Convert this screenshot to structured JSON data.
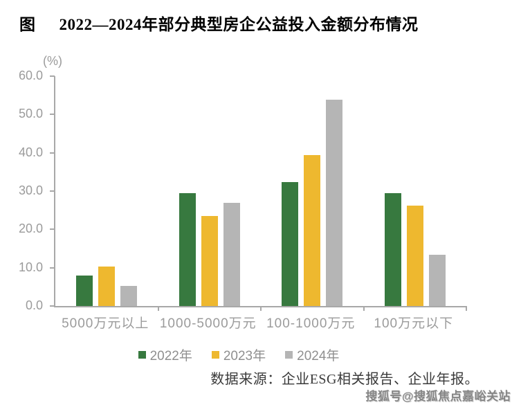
{
  "figure": {
    "label": "图",
    "title": "2022—2024年部分典型房企公益投入金额分布情况"
  },
  "chart_data": {
    "type": "bar",
    "title": "2022—2024年部分典型房企公益投入金额分布情况",
    "unit_label": "(%)",
    "xlabel": "",
    "ylabel": "(%)",
    "categories": [
      "5000万元以上",
      "1000-5000万元",
      "100-1000万元",
      "100万元以下"
    ],
    "series": [
      {
        "name": "2022年",
        "color": "#37793F",
        "values": [
          7.9,
          29.4,
          32.4,
          29.4
        ]
      },
      {
        "name": "2023年",
        "color": "#EEB82F",
        "values": [
          10.3,
          23.5,
          39.4,
          26.2
        ]
      },
      {
        "name": "2024年",
        "color": "#B5B5B5",
        "values": [
          5.3,
          26.9,
          53.9,
          13.4
        ]
      }
    ],
    "ylim": [
      0,
      60
    ],
    "yticks": [
      "60.0",
      "50.0",
      "40.0",
      "30.0",
      "20.0",
      "10.0",
      "0.0"
    ],
    "grid": false,
    "legend_position": "bottom"
  },
  "source": {
    "text": "数据来源：企业ESG相关报告、企业年报。"
  },
  "watermark": {
    "text": "搜狐号@搜狐焦点嘉峪关站"
  },
  "colors": {
    "axis": "#A8A8A8",
    "tick_label": "#9B9B9B",
    "title_text": "#1C1C1C",
    "source_text": "#3A3A3A",
    "watermark_text": "#858585"
  }
}
